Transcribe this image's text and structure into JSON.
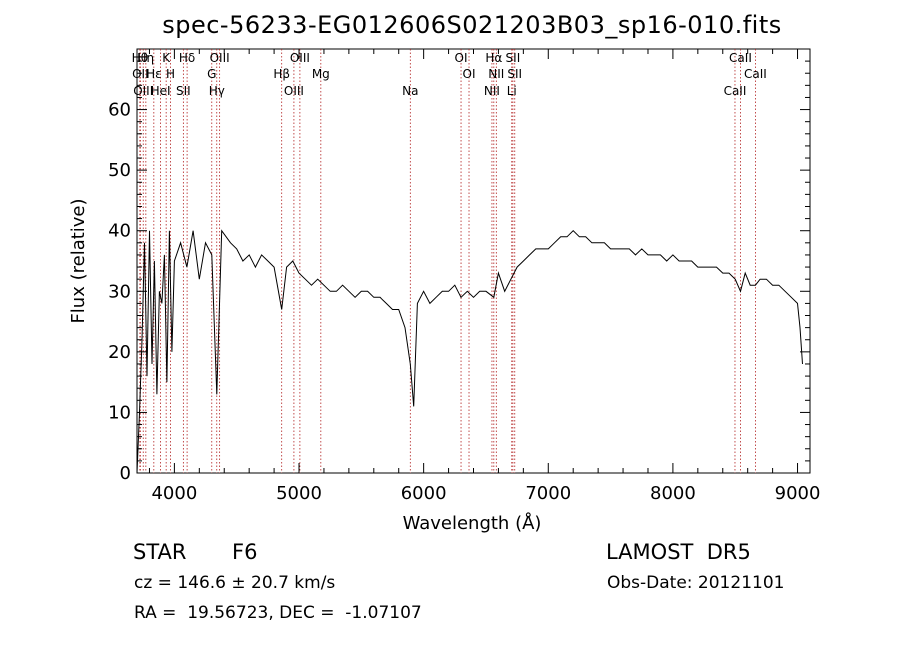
{
  "chart_data": {
    "type": "line",
    "title": "spec-56233-EG012606S021203B03_sp16-010.fits",
    "xlabel": "Wavelength (Å)",
    "ylabel": "Flux (relative)",
    "xlim": [
      3700,
      9100
    ],
    "ylim": [
      0,
      70
    ],
    "x_ticks": [
      4000,
      5000,
      6000,
      7000,
      8000,
      9000
    ],
    "x_tick_labels": [
      "4000",
      "5000",
      "6000",
      "7000",
      "8000",
      "9000"
    ],
    "y_ticks": [
      0,
      10,
      20,
      30,
      40,
      50,
      60
    ],
    "y_tick_labels": [
      "0",
      "10",
      "20",
      "30",
      "40",
      "50",
      "60"
    ],
    "grid": false,
    "line_color": "#000000",
    "marker_color": "#b22222",
    "series": [
      {
        "x": [
          3700,
          3720,
          3740,
          3760,
          3780,
          3800,
          3820,
          3840,
          3860,
          3880,
          3900,
          3920,
          3940,
          3960,
          3980,
          4000,
          4050,
          4100,
          4150,
          4200,
          4250,
          4300,
          4340,
          4380,
          4450,
          4500,
          4550,
          4600,
          4650,
          4700,
          4750,
          4800,
          4861,
          4900,
          4950,
          5000,
          5050,
          5100,
          5150,
          5200,
          5250,
          5300,
          5350,
          5400,
          5450,
          5500,
          5550,
          5600,
          5650,
          5700,
          5750,
          5800,
          5850,
          5893,
          5920,
          5950,
          6000,
          6050,
          6100,
          6150,
          6200,
          6250,
          6300,
          6350,
          6400,
          6450,
          6500,
          6563,
          6600,
          6650,
          6700,
          6750,
          6800,
          6850,
          6900,
          6950,
          7000,
          7050,
          7100,
          7150,
          7200,
          7250,
          7300,
          7350,
          7400,
          7450,
          7500,
          7550,
          7600,
          7650,
          7700,
          7750,
          7800,
          7850,
          7900,
          7950,
          8000,
          8050,
          8100,
          8150,
          8200,
          8250,
          8300,
          8350,
          8400,
          8450,
          8500,
          8542,
          8580,
          8620,
          8662,
          8700,
          8750,
          8800,
          8850,
          8900,
          8950,
          9000,
          9020,
          9040
        ],
        "y": [
          0,
          10,
          22,
          38,
          16,
          40,
          18,
          35,
          13,
          30,
          28,
          36,
          15,
          40,
          20,
          35,
          38,
          34,
          40,
          32,
          38,
          36,
          13,
          40,
          38,
          37,
          35,
          36,
          34,
          36,
          35,
          34,
          27,
          34,
          35,
          33,
          32,
          31,
          32,
          31,
          30,
          30,
          31,
          30,
          29,
          30,
          30,
          29,
          29,
          28,
          27,
          27,
          24,
          18,
          11,
          28,
          30,
          28,
          29,
          30,
          30,
          31,
          29,
          30,
          29,
          30,
          30,
          29,
          33,
          30,
          32,
          34,
          35,
          36,
          37,
          37,
          37,
          38,
          39,
          39,
          40,
          39,
          39,
          38,
          38,
          38,
          37,
          37,
          37,
          37,
          36,
          37,
          36,
          36,
          36,
          35,
          36,
          35,
          35,
          35,
          34,
          34,
          34,
          34,
          33,
          33,
          32,
          30,
          33,
          31,
          31,
          32,
          32,
          31,
          31,
          30,
          29,
          28,
          24,
          18
        ]
      }
    ],
    "annotations": [
      {
        "x": 3723,
        "text": "Hθ"
      },
      {
        "x": 3727,
        "text": "OII"
      },
      {
        "x": 3750,
        "text": "OIII"
      },
      {
        "x": 3771,
        "text": "Hη"
      },
      {
        "x": 3835,
        "text": "Hε"
      },
      {
        "x": 3889,
        "text": "HeI"
      },
      {
        "x": 3934,
        "text": "K"
      },
      {
        "x": 3969,
        "text": "H"
      },
      {
        "x": 4072,
        "text": "SII"
      },
      {
        "x": 4102,
        "text": "Hδ"
      },
      {
        "x": 4300,
        "text": "G"
      },
      {
        "x": 4340,
        "text": "Hγ"
      },
      {
        "x": 4363,
        "text": "OIII"
      },
      {
        "x": 4861,
        "text": "Hβ"
      },
      {
        "x": 4959,
        "text": "OIII"
      },
      {
        "x": 5007,
        "text": "OIII"
      },
      {
        "x": 5175,
        "text": "Mg"
      },
      {
        "x": 5893,
        "text": "Na"
      },
      {
        "x": 6300,
        "text": "OI"
      },
      {
        "x": 6364,
        "text": "OI"
      },
      {
        "x": 6548,
        "text": "NII"
      },
      {
        "x": 6563,
        "text": "Hα"
      },
      {
        "x": 6583,
        "text": "NII"
      },
      {
        "x": 6707,
        "text": "Li"
      },
      {
        "x": 6716,
        "text": "SII"
      },
      {
        "x": 6731,
        "text": "SII"
      },
      {
        "x": 8498,
        "text": "CaII"
      },
      {
        "x": 8542,
        "text": "CaII"
      },
      {
        "x": 8662,
        "text": "CaII"
      }
    ]
  },
  "info": {
    "class_label": "STAR",
    "subclass": "F6",
    "survey": "LAMOST  DR5",
    "redshift": "cz = 146.6 ± 20.7 km/s",
    "obs_date": "Obs-Date: 20121101",
    "coords": "RA =  19.56723, DEC =  -1.07107"
  }
}
